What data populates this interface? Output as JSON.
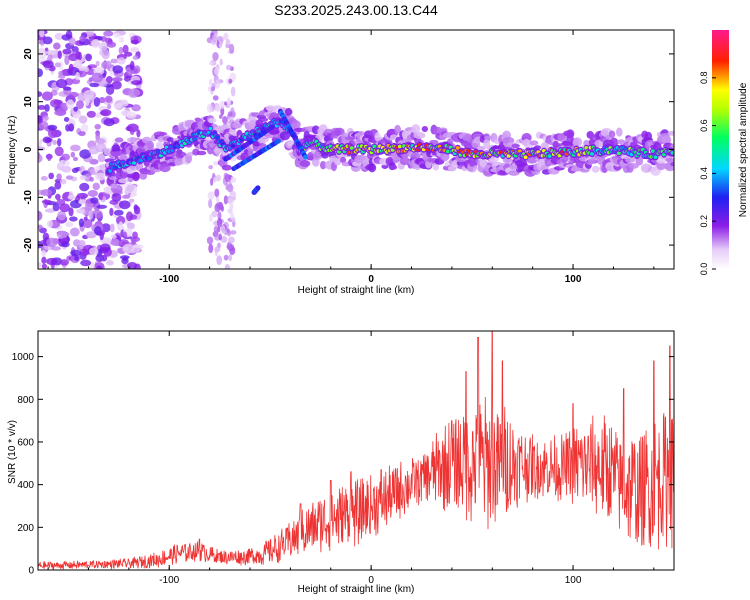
{
  "title": "S233.2025.243.00.13.C44",
  "colors": {
    "snr_line": "#ee3333",
    "background": "#ffffff",
    "axis": "#000000"
  },
  "chart_data": [
    {
      "type": "heatmap",
      "title": "S233.2025.243.00.13.C44",
      "xlabel": "Height of straight line (km)",
      "ylabel": "Frequency (Hz)",
      "xlim": [
        -165,
        150
      ],
      "ylim": [
        -25,
        25
      ],
      "xticks": [
        -100,
        0,
        100
      ],
      "yticks": [
        -20,
        -10,
        0,
        10,
        20
      ],
      "colorbar": {
        "label": "Normalized spectral amplitude",
        "range": [
          0,
          1
        ],
        "ticks": [
          "0.0",
          "0.2",
          "0.4",
          "0.6",
          "0.8"
        ],
        "colormap": "rainbow (white - violet - blue - cyan - green - yellow - red - magenta)"
      },
      "ridge": {
        "description": "Dominant spectral ridge vs height",
        "points": [
          [
            -130,
            -4
          ],
          [
            -115,
            -2
          ],
          [
            -100,
            0
          ],
          [
            -90,
            2
          ],
          [
            -80,
            4
          ],
          [
            -72,
            0
          ],
          [
            -65,
            2
          ],
          [
            -55,
            4
          ],
          [
            -45,
            6
          ],
          [
            -40,
            4
          ],
          [
            -35,
            0
          ],
          [
            -30,
            1.5
          ],
          [
            -20,
            0
          ],
          [
            0,
            0
          ],
          [
            25,
            0.5
          ],
          [
            40,
            0
          ],
          [
            50,
            -1
          ],
          [
            60,
            -1
          ],
          [
            80,
            -1
          ],
          [
            100,
            -0.5
          ],
          [
            120,
            0
          ],
          [
            140,
            -1
          ],
          [
            150,
            0
          ]
        ],
        "peak_amplitude_range_km": [
          -20,
          110
        ]
      },
      "noise_region_km": [
        -165,
        -125
      ]
    },
    {
      "type": "line",
      "xlabel": "Height of straight line (km)",
      "ylabel": "SNR (10 * v/v)",
      "xlim": [
        -165,
        150
      ],
      "ylim": [
        0,
        1120
      ],
      "xticks": [
        -100,
        0,
        100
      ],
      "yticks": [
        0,
        200,
        400,
        600,
        800,
        1000
      ],
      "series": [
        {
          "name": "SNR",
          "color": "#ee3333",
          "envelope": {
            "x": [
              -165,
              -140,
              -120,
              -105,
              -95,
              -85,
              -75,
              -65,
              -55,
              -45,
              -35,
              -25,
              -15,
              -5,
              5,
              15,
              25,
              35,
              45,
              55,
              65,
              75,
              85,
              95,
              105,
              115,
              125,
              135,
              145,
              150
            ],
            "y": [
              20,
              25,
              30,
              50,
              80,
              90,
              60,
              60,
              70,
              110,
              170,
              220,
              250,
              270,
              320,
              380,
              430,
              480,
              500,
              500,
              500,
              490,
              480,
              480,
              500,
              480,
              400,
              360,
              450,
              450
            ],
            "spread": [
              20,
              20,
              25,
              40,
              50,
              50,
              35,
              40,
              50,
              80,
              110,
              140,
              160,
              160,
              150,
              140,
              120,
              200,
              280,
              330,
              300,
              180,
              150,
              160,
              220,
              260,
              260,
              320,
              350,
              350
            ]
          },
          "peaks": [
            [
              -85,
              145
            ],
            [
              -35,
              310
            ],
            [
              -20,
              420
            ],
            [
              -10,
              460
            ],
            [
              5,
              470
            ],
            [
              40,
              700
            ],
            [
              47,
              930
            ],
            [
              53,
              1090
            ],
            [
              60,
              1120
            ],
            [
              65,
              980
            ],
            [
              100,
              780
            ],
            [
              125,
              850
            ],
            [
              140,
              980
            ],
            [
              148,
              1050
            ]
          ]
        }
      ]
    }
  ]
}
